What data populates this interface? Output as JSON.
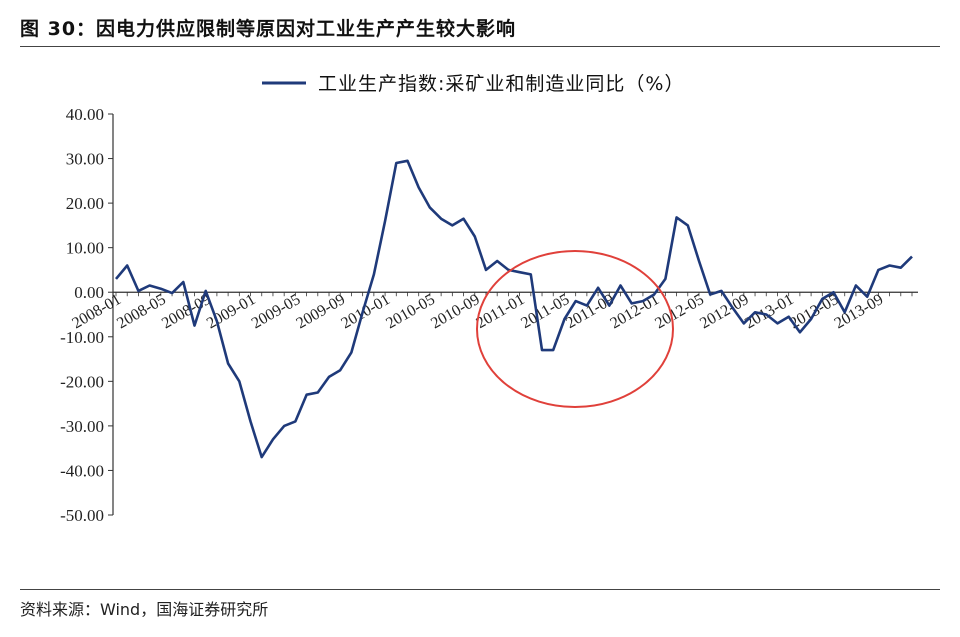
{
  "figure": {
    "title": "图 30：因电力供应限制等原因对工业生产产生较大影响",
    "source": "资料来源：Wind，国海证券研究所"
  },
  "chart_data": {
    "type": "line",
    "title": "",
    "xlabel": "",
    "ylabel": "",
    "ylim": [
      -50,
      40
    ],
    "y_ticks": [
      40,
      30,
      20,
      10,
      0,
      -10,
      -20,
      -30,
      -40,
      -50
    ],
    "y_tick_labels": [
      "40.00",
      "30.00",
      "20.00",
      "10.00",
      "0.00",
      "-10.00",
      "-20.00",
      "-30.00",
      "-40.00",
      "-50.00"
    ],
    "x_tick_labels": [
      "2008-01",
      "2008-05",
      "2008-09",
      "2009-01",
      "2009-05",
      "2009-09",
      "2010-01",
      "2010-05",
      "2010-09",
      "2011-01",
      "2011-05",
      "2011-09",
      "2012-01",
      "2012-05",
      "2012-09",
      "2013-01",
      "2013-05",
      "2013-09"
    ],
    "legend_position": "top-center",
    "grid": false,
    "annotation": "red ellipse highlighting 2011-01 to 2012-01",
    "series": [
      {
        "name": "工业生产指数:采矿业和制造业同比（%）",
        "color": "#1f3a7a",
        "x": [
          "2008-01",
          "2008-02",
          "2008-03",
          "2008-04",
          "2008-05",
          "2008-06",
          "2008-07",
          "2008-08",
          "2008-09",
          "2008-10",
          "2008-11",
          "2008-12",
          "2009-01",
          "2009-02",
          "2009-03",
          "2009-04",
          "2009-05",
          "2009-06",
          "2009-07",
          "2009-08",
          "2009-09",
          "2009-10",
          "2009-11",
          "2009-12",
          "2010-01",
          "2010-02",
          "2010-03",
          "2010-04",
          "2010-05",
          "2010-06",
          "2010-07",
          "2010-08",
          "2010-09",
          "2010-10",
          "2010-11",
          "2010-12",
          "2011-01",
          "2011-02",
          "2011-03",
          "2011-04",
          "2011-05",
          "2011-06",
          "2011-07",
          "2011-08",
          "2011-09",
          "2011-10",
          "2011-11",
          "2011-12",
          "2012-01",
          "2012-02",
          "2012-03",
          "2012-04",
          "2012-05",
          "2012-06",
          "2012-07",
          "2012-08",
          "2012-09",
          "2012-10",
          "2012-11",
          "2012-12",
          "2013-01",
          "2013-02",
          "2013-03",
          "2013-04",
          "2013-05",
          "2013-06",
          "2013-07",
          "2013-08",
          "2013-09",
          "2013-10",
          "2013-11",
          "2013-12"
        ],
        "values": [
          3.0,
          6.0,
          0.3,
          1.5,
          0.8,
          -0.2,
          2.3,
          -7.5,
          0.3,
          -6.5,
          -16.0,
          -20.0,
          -29.0,
          -37.0,
          -33.0,
          -30.0,
          -29.0,
          -23.0,
          -22.5,
          -19.0,
          -17.5,
          -13.5,
          -4.5,
          4.0,
          16.0,
          29.0,
          29.5,
          23.5,
          19.0,
          16.5,
          15.0,
          16.5,
          12.5,
          5.0,
          7.0,
          5.0,
          4.5,
          4.0,
          -13.0,
          -13.0,
          -6.0,
          -2.0,
          -3.0,
          1.0,
          -3.0,
          1.5,
          -2.5,
          -2.0,
          -0.5,
          3.0,
          16.8,
          15.0,
          7.0,
          -0.5,
          0.3,
          -3.5,
          -7.0,
          -4.5,
          -5.0,
          -7.0,
          -5.5,
          -9.0,
          -6.0,
          -1.5,
          0.0,
          -4.5,
          1.5,
          -1.0,
          5.0,
          6.0,
          5.5,
          8.0
        ]
      }
    ]
  }
}
